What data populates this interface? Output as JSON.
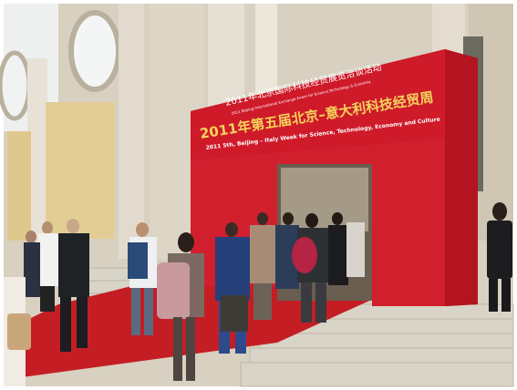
{
  "scene": {
    "arch": {
      "line1_cn": "2011年北京国际科技经贸展览洽谈活动",
      "line1_en": "2011 Beijing International Exchange Event for Science,Technology & Economy",
      "line2_cn": "2011年第五届北京–意大利科技经贸周",
      "line2_en": "2011 5th, Beijing – Italy Week for Science, Technology, Economy and Culture"
    },
    "colors": {
      "arch_red": "#d21f2e",
      "carpet_red": "#c41e24",
      "stone": "#d9d2c3",
      "sign_gold": "#f3d45a"
    }
  }
}
